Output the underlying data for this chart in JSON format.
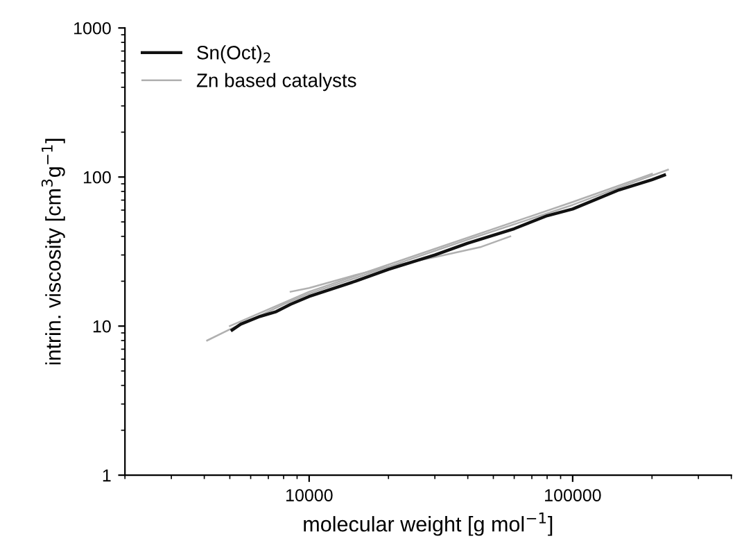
{
  "chart_data": {
    "type": "line",
    "xlabel": "molecular weight [g mol$^{−1}$]",
    "ylabel": "intrin. viscosity [cm$^{3}$g$^{−1}$]",
    "log": "xy",
    "xlim": [
      2000,
      400000
    ],
    "ylim": [
      1,
      1000
    ],
    "xticks": [
      10000,
      100000
    ],
    "yticks": [
      1,
      10,
      100,
      1000
    ],
    "grid": false,
    "legend": "top left",
    "series": [
      {
        "name": "Zn based catalysts",
        "color": "#b0b0b0",
        "x": [
          4100,
          5000,
          6000,
          8000,
          10000,
          20000,
          40000,
          100000,
          150000,
          230000
        ],
        "values": [
          8,
          9.5,
          11,
          14,
          16.5,
          25,
          38,
          65,
          85,
          112
        ]
      },
      {
        "color": "#b0b0b0",
        "x": [
          8500,
          10000,
          15000,
          20000,
          30000,
          45000,
          58000
        ],
        "values": [
          17,
          18,
          22,
          25,
          29,
          34,
          40
        ]
      },
      {
        "color": "#b0b0b0",
        "x": [
          5000,
          10000,
          30000,
          60000,
          100000,
          200000
        ],
        "values": [
          10,
          17,
          33,
          50,
          68,
          105
        ]
      },
      {
        "name": "Sn(Oct)$_{2}$",
        "color": "#111111",
        "x": [
          5100,
          5500,
          6500,
          7500,
          8500,
          10000,
          15000,
          20000,
          30000,
          40000,
          60000,
          80000,
          100000,
          150000,
          200000,
          223000
        ],
        "values": [
          9.4,
          10.3,
          11.6,
          12.5,
          14,
          15.8,
          20,
          24,
          30,
          36,
          45,
          55,
          61,
          82,
          96,
          103
        ]
      }
    ]
  }
}
